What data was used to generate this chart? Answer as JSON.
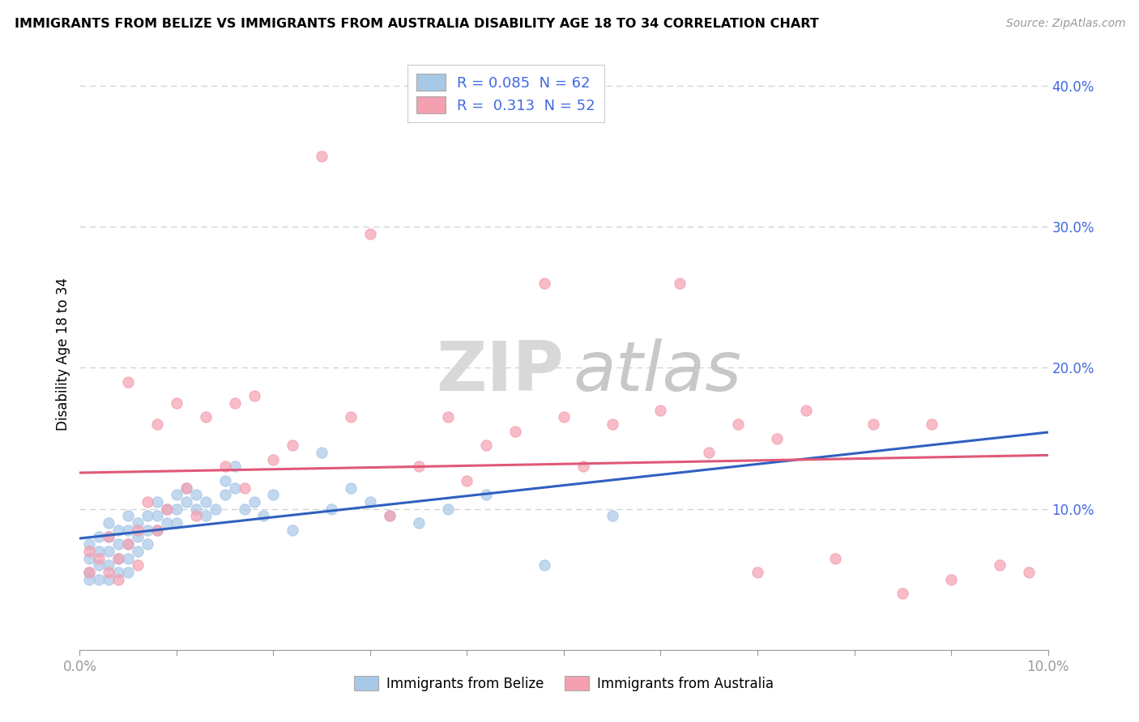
{
  "title": "IMMIGRANTS FROM BELIZE VS IMMIGRANTS FROM AUSTRALIA DISABILITY AGE 18 TO 34 CORRELATION CHART",
  "source": "Source: ZipAtlas.com",
  "ylabel": "Disability Age 18 to 34",
  "legend_label_belize": "Immigrants from Belize",
  "legend_label_australia": "Immigrants from Australia",
  "r_belize": 0.085,
  "n_belize": 62,
  "r_australia": 0.313,
  "n_australia": 52,
  "belize_color": "#a8c8e8",
  "australia_color": "#f4a0b0",
  "belize_line_color": "#3060c0",
  "australia_line_color": "#e05878",
  "background_color": "#ffffff",
  "grid_color": "#d0d0d0",
  "right_axis_color": "#4169E1",
  "tick_color": "#4169E1",
  "xmin": 0.0,
  "xmax": 0.1,
  "ymin": 0.0,
  "ymax": 0.42,
  "belize_x": [
    0.001,
    0.001,
    0.001,
    0.001,
    0.002,
    0.002,
    0.002,
    0.002,
    0.003,
    0.003,
    0.003,
    0.003,
    0.003,
    0.004,
    0.004,
    0.004,
    0.004,
    0.005,
    0.005,
    0.005,
    0.005,
    0.005,
    0.006,
    0.006,
    0.006,
    0.007,
    0.007,
    0.007,
    0.008,
    0.008,
    0.008,
    0.009,
    0.009,
    0.01,
    0.01,
    0.01,
    0.011,
    0.011,
    0.012,
    0.012,
    0.013,
    0.013,
    0.014,
    0.015,
    0.015,
    0.016,
    0.016,
    0.017,
    0.018,
    0.019,
    0.02,
    0.022,
    0.025,
    0.026,
    0.028,
    0.03,
    0.032,
    0.035,
    0.038,
    0.042,
    0.048,
    0.055
  ],
  "belize_y": [
    0.075,
    0.065,
    0.055,
    0.05,
    0.08,
    0.07,
    0.06,
    0.05,
    0.09,
    0.08,
    0.07,
    0.06,
    0.05,
    0.085,
    0.075,
    0.065,
    0.055,
    0.095,
    0.085,
    0.075,
    0.065,
    0.055,
    0.09,
    0.08,
    0.07,
    0.095,
    0.085,
    0.075,
    0.105,
    0.095,
    0.085,
    0.1,
    0.09,
    0.11,
    0.1,
    0.09,
    0.115,
    0.105,
    0.11,
    0.1,
    0.105,
    0.095,
    0.1,
    0.12,
    0.11,
    0.13,
    0.115,
    0.1,
    0.105,
    0.095,
    0.11,
    0.085,
    0.14,
    0.1,
    0.115,
    0.105,
    0.095,
    0.09,
    0.1,
    0.11,
    0.06,
    0.095
  ],
  "australia_x": [
    0.001,
    0.001,
    0.002,
    0.003,
    0.003,
    0.004,
    0.004,
    0.005,
    0.005,
    0.006,
    0.006,
    0.007,
    0.008,
    0.008,
    0.009,
    0.01,
    0.011,
    0.012,
    0.013,
    0.015,
    0.016,
    0.017,
    0.018,
    0.02,
    0.022,
    0.025,
    0.028,
    0.03,
    0.032,
    0.035,
    0.038,
    0.04,
    0.042,
    0.045,
    0.048,
    0.05,
    0.052,
    0.055,
    0.06,
    0.062,
    0.065,
    0.068,
    0.07,
    0.072,
    0.075,
    0.078,
    0.082,
    0.085,
    0.088,
    0.09,
    0.095,
    0.098
  ],
  "australia_y": [
    0.07,
    0.055,
    0.065,
    0.08,
    0.055,
    0.065,
    0.05,
    0.19,
    0.075,
    0.085,
    0.06,
    0.105,
    0.16,
    0.085,
    0.1,
    0.175,
    0.115,
    0.095,
    0.165,
    0.13,
    0.175,
    0.115,
    0.18,
    0.135,
    0.145,
    0.35,
    0.165,
    0.295,
    0.095,
    0.13,
    0.165,
    0.12,
    0.145,
    0.155,
    0.26,
    0.165,
    0.13,
    0.16,
    0.17,
    0.26,
    0.14,
    0.16,
    0.055,
    0.15,
    0.17,
    0.065,
    0.16,
    0.04,
    0.16,
    0.05,
    0.06,
    0.055
  ],
  "watermark_zip": "ZIP",
  "watermark_atlas": "atlas",
  "yticks": [
    0.1,
    0.2,
    0.3,
    0.4
  ]
}
